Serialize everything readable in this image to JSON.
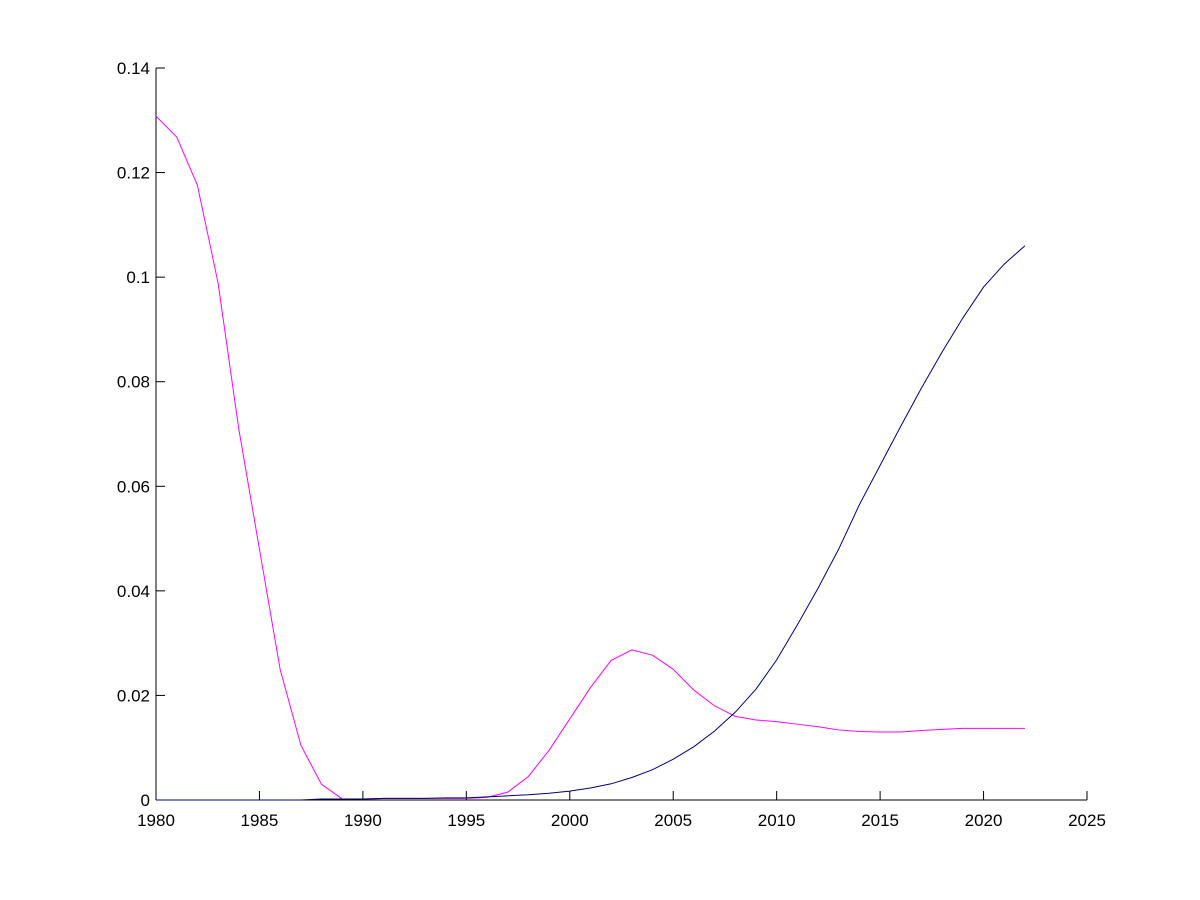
{
  "chart_data": {
    "type": "line",
    "x": [
      1980,
      1981,
      1982,
      1983,
      1984,
      1985,
      1986,
      1987,
      1988,
      1989,
      1990,
      1991,
      1992,
      1993,
      1994,
      1995,
      1996,
      1997,
      1998,
      1999,
      2000,
      2001,
      2002,
      2003,
      2004,
      2005,
      2006,
      2007,
      2008,
      2009,
      2010,
      2011,
      2012,
      2013,
      2014,
      2015,
      2016,
      2017,
      2018,
      2019,
      2020,
      2021,
      2022
    ],
    "series": [
      {
        "color": "#ff00ff",
        "values": [
          0.1308,
          0.1268,
          0.1176,
          0.0989,
          0.071,
          0.048,
          0.025,
          0.0105,
          0.003,
          0.0002,
          0.0002,
          0.0003,
          0.0003,
          0.0003,
          0.0003,
          0.0003,
          0.0005,
          0.0015,
          0.0045,
          0.0095,
          0.0155,
          0.0215,
          0.0267,
          0.0287,
          0.0277,
          0.025,
          0.021,
          0.018,
          0.016,
          0.0153,
          0.015,
          0.0145,
          0.014,
          0.0134,
          0.0131,
          0.013,
          0.013,
          0.0133,
          0.0135,
          0.0137,
          0.0137,
          0.0137,
          0.0137
        ]
      },
      {
        "color": "#000080",
        "values": [
          0,
          0,
          0,
          0,
          0,
          0,
          0,
          0,
          0.0002,
          0.0002,
          0.0002,
          0.0003,
          0.0003,
          0.0003,
          0.0004,
          0.0004,
          0.0006,
          0.0008,
          0.001,
          0.0013,
          0.0017,
          0.0023,
          0.0031,
          0.0043,
          0.0058,
          0.0078,
          0.0102,
          0.0132,
          0.0168,
          0.0212,
          0.0268,
          0.0335,
          0.0405,
          0.048,
          0.0565,
          0.064,
          0.0715,
          0.0788,
          0.0857,
          0.0922,
          0.0981,
          0.1025,
          0.106
        ]
      }
    ],
    "xlim": [
      1980,
      2025
    ],
    "xticks": [
      1980,
      1985,
      1990,
      1995,
      2000,
      2005,
      2010,
      2015,
      2020,
      2025
    ],
    "ylim": [
      0,
      0.14
    ],
    "yticks": [
      0,
      0.02,
      0.04,
      0.06,
      0.08,
      0.1,
      0.12,
      0.14
    ]
  }
}
